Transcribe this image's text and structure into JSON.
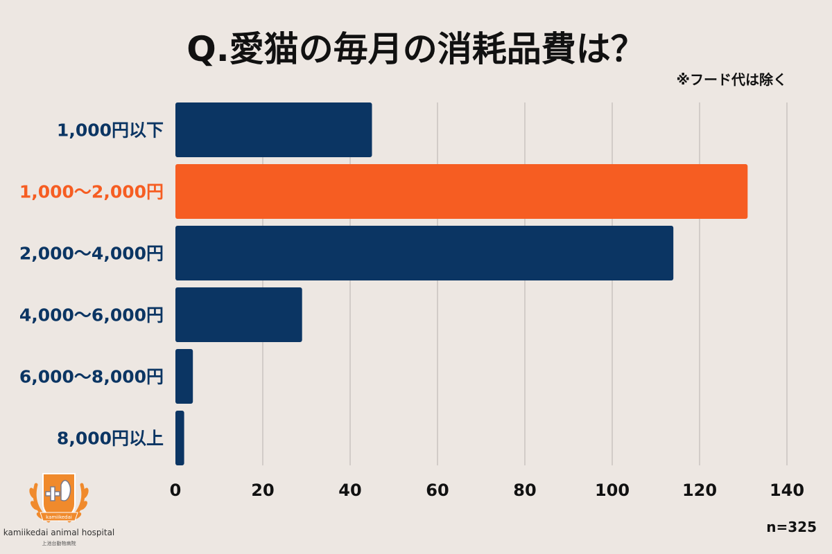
{
  "chart_data": {
    "type": "bar",
    "orientation": "horizontal",
    "title": "Q.愛猫の毎月の消耗品費は？",
    "note": "※フード代は除く",
    "sample_size": "n=325",
    "categories": [
      "1,000円以下",
      "1,000〜2,000円",
      "2,000〜4,000円",
      "4,000〜6,000円",
      "6,000〜8,000円",
      "8,000円以上"
    ],
    "values": [
      45,
      131,
      114,
      29,
      4,
      2
    ],
    "highlight_index": 1,
    "xlim": [
      0,
      140
    ],
    "xticks": [
      "0",
      "20",
      "40",
      "60",
      "80",
      "100",
      "120",
      "140"
    ],
    "grid": true,
    "colors": {
      "bar": "#0b3563",
      "highlight": "#f65d22",
      "label": "#0b3563",
      "grid": "#c9c4c0",
      "background": "#ede7e2"
    }
  },
  "logo": {
    "name": "kamiikedai animal hospital",
    "sub": "上池台動物病院",
    "ribbon": "kamiikedai"
  }
}
